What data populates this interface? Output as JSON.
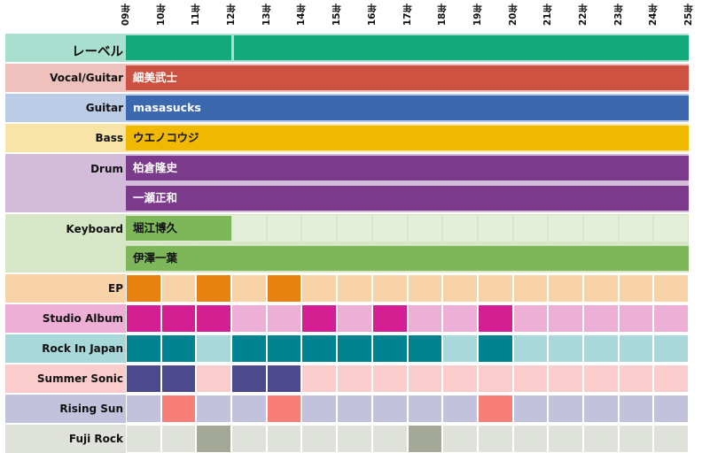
{
  "chart_data": {
    "type": "timeline",
    "x_axis": {
      "ticks": [
        "09年",
        "10年",
        "11年",
        "12年",
        "13年",
        "14年",
        "15年",
        "16年",
        "17年",
        "18年",
        "19年",
        "20年",
        "21年",
        "22年",
        "23年",
        "24年",
        "25年"
      ],
      "range": [
        2009,
        2025
      ]
    },
    "groups": [
      {
        "key": "label",
        "title": "レーベル",
        "title_size": "big",
        "bg": "#a8dfcf",
        "tracks": [
          {
            "segments": [
              {
                "start": 2009,
                "end": 2012,
                "color": "#14a97a",
                "label": ""
              },
              {
                "start": 2012.05,
                "end": 2025,
                "color": "#14a97a",
                "label": ""
              }
            ]
          }
        ]
      },
      {
        "key": "vocal",
        "title": "Vocal/Guitar",
        "bg": "#eec1bd",
        "tracks": [
          {
            "segments": [
              {
                "start": 2009,
                "end": 2025,
                "color": "#cd5240",
                "label": "細美武士",
                "text": "light"
              }
            ]
          }
        ]
      },
      {
        "key": "guitar",
        "title": "Guitar",
        "bg": "#bbcce6",
        "tracks": [
          {
            "segments": [
              {
                "start": 2009,
                "end": 2025,
                "color": "#3b68ae",
                "label": "masasucks",
                "text": "light"
              }
            ]
          }
        ]
      },
      {
        "key": "bass",
        "title": "Bass",
        "bg": "#f8e4a6",
        "tracks": [
          {
            "segments": [
              {
                "start": 2009,
                "end": 2025,
                "color": "#f1b800",
                "label": "ウエノコウジ",
                "text": "dark"
              }
            ]
          }
        ]
      },
      {
        "key": "drum",
        "title": "Drum",
        "bg": "#d2bcd9",
        "tracks": [
          {
            "segments": [
              {
                "start": 2009,
                "end": 2025,
                "color": "#7c3a8c",
                "label": "柏倉隆史",
                "text": "light"
              }
            ]
          },
          {
            "segments": [
              {
                "start": 2009,
                "end": 2025,
                "color": "#7c3a8c",
                "label": "一瀬正和",
                "text": "light"
              }
            ]
          }
        ]
      },
      {
        "key": "keyboard",
        "title": "Keyboard",
        "bg": "#d6e6c6",
        "tracks": [
          {
            "segments": [
              {
                "start": 2009,
                "end": 2012,
                "color": "#7db75a",
                "label": "堀江博久",
                "text": "dark"
              }
            ]
          },
          {
            "segments": [
              {
                "start": 2009,
                "end": 2025,
                "color": "#7db75a",
                "label": "伊澤一葉",
                "text": "dark"
              }
            ]
          }
        ]
      }
    ],
    "yearly": [
      {
        "title": "EP",
        "bg": "#f9d3a8",
        "color": "#e8820e",
        "years": [
          2009,
          2011,
          2013
        ]
      },
      {
        "title": "Studio Album",
        "bg": "#edafd6",
        "color": "#d31f91",
        "years": [
          2009,
          2010,
          2011,
          2014,
          2016,
          2019
        ]
      },
      {
        "title": "Rock In Japan",
        "bg": "#a9d8db",
        "color": "#008391",
        "years": [
          2009,
          2010,
          2012,
          2013,
          2014,
          2015,
          2016,
          2017,
          2019
        ]
      },
      {
        "title": "Summer Sonic",
        "bg": "#facdcc",
        "color": "#4c4a8c",
        "years": [
          2009,
          2010,
          2012,
          2013
        ]
      },
      {
        "title": "Rising Sun",
        "bg": "#c2c2dc",
        "color": "#f77f77",
        "years": [
          2010,
          2013,
          2019
        ]
      },
      {
        "title": "Fuji Rock",
        "bg": "#dfe2da",
        "color": "#a4a896",
        "years": [
          2011,
          2017
        ]
      }
    ]
  }
}
